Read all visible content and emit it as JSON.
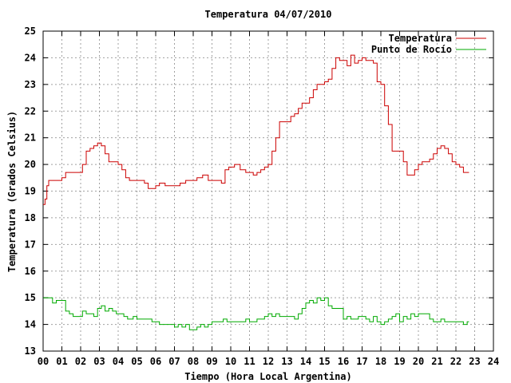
{
  "chart_data": {
    "type": "line",
    "title": "Temperatura 04/07/2010",
    "xlabel": "Tiempo (Hora Local Argentina)",
    "ylabel": "Temperatura (Grados Celsius)",
    "xlim": [
      0,
      24
    ],
    "ylim": [
      13,
      25
    ],
    "xticks": [
      "00",
      "01",
      "02",
      "03",
      "04",
      "05",
      "06",
      "07",
      "08",
      "09",
      "10",
      "11",
      "12",
      "13",
      "14",
      "15",
      "16",
      "17",
      "18",
      "19",
      "20",
      "21",
      "22",
      "23",
      "24"
    ],
    "yticks": [
      "13",
      "14",
      "15",
      "16",
      "17",
      "18",
      "19",
      "20",
      "21",
      "22",
      "23",
      "24",
      "25"
    ],
    "grid": true,
    "legend": "top-right",
    "series": [
      {
        "name": "Temperatura",
        "color": "#cc0000",
        "x": [
          0.0,
          0.1,
          0.2,
          0.3,
          0.5,
          0.8,
          1.0,
          1.2,
          1.5,
          1.9,
          2.1,
          2.3,
          2.5,
          2.7,
          2.9,
          3.1,
          3.3,
          3.5,
          3.7,
          4.0,
          4.2,
          4.4,
          4.6,
          4.8,
          5.0,
          5.2,
          5.4,
          5.6,
          5.8,
          6.0,
          6.2,
          6.5,
          6.8,
          7.0,
          7.3,
          7.6,
          7.9,
          8.2,
          8.5,
          8.8,
          9.0,
          9.3,
          9.5,
          9.7,
          9.9,
          10.0,
          10.2,
          10.5,
          10.8,
          11.0,
          11.2,
          11.4,
          11.6,
          11.8,
          12.0,
          12.2,
          12.4,
          12.6,
          12.8,
          13.0,
          13.2,
          13.4,
          13.6,
          13.8,
          14.0,
          14.2,
          14.4,
          14.6,
          14.8,
          15.0,
          15.2,
          15.4,
          15.6,
          15.8,
          16.0,
          16.2,
          16.4,
          16.6,
          16.8,
          17.0,
          17.2,
          17.4,
          17.6,
          17.8,
          18.0,
          18.2,
          18.4,
          18.6,
          18.8,
          19.0,
          19.2,
          19.4,
          19.6,
          19.8,
          20.0,
          20.2,
          20.4,
          20.6,
          20.8,
          21.0,
          21.2,
          21.4,
          21.6,
          21.8,
          22.0,
          22.2,
          22.4,
          22.6
        ],
        "y": [
          18.5,
          18.7,
          19.2,
          19.4,
          19.4,
          19.4,
          19.5,
          19.7,
          19.7,
          19.7,
          20.0,
          20.5,
          20.6,
          20.7,
          20.8,
          20.7,
          20.4,
          20.1,
          20.1,
          20.0,
          19.8,
          19.5,
          19.4,
          19.4,
          19.4,
          19.4,
          19.3,
          19.1,
          19.1,
          19.2,
          19.3,
          19.2,
          19.2,
          19.2,
          19.3,
          19.4,
          19.4,
          19.5,
          19.6,
          19.4,
          19.4,
          19.4,
          19.3,
          19.8,
          19.9,
          19.9,
          20.0,
          19.8,
          19.7,
          19.7,
          19.6,
          19.7,
          19.8,
          19.9,
          20.0,
          20.5,
          21.0,
          21.6,
          21.6,
          21.6,
          21.8,
          21.9,
          22.1,
          22.3,
          22.3,
          22.5,
          22.8,
          23.0,
          23.0,
          23.1,
          23.2,
          23.6,
          24.0,
          23.9,
          23.9,
          23.7,
          24.1,
          23.8,
          23.9,
          24.0,
          23.9,
          23.9,
          23.8,
          23.1,
          23.0,
          22.2,
          21.5,
          20.5,
          20.5,
          20.5,
          20.1,
          19.6,
          19.6,
          19.8,
          20.0,
          20.1,
          20.1,
          20.2,
          20.4,
          20.6,
          20.7,
          20.6,
          20.4,
          20.1,
          20.0,
          19.9,
          19.7,
          19.7
        ],
        "last_x": 22.7,
        "last_y": 19.7
      },
      {
        "name": "Punto de Rocío",
        "color": "#00aa00",
        "x": [
          0.0,
          0.2,
          0.4,
          0.5,
          0.7,
          1.0,
          1.2,
          1.4,
          1.6,
          1.9,
          2.1,
          2.3,
          2.5,
          2.7,
          2.9,
          3.1,
          3.3,
          3.5,
          3.7,
          3.9,
          4.1,
          4.3,
          4.5,
          4.8,
          5.0,
          5.2,
          5.4,
          5.6,
          5.8,
          6.0,
          6.2,
          6.4,
          6.7,
          7.0,
          7.2,
          7.4,
          7.6,
          7.8,
          8.0,
          8.2,
          8.4,
          8.6,
          8.8,
          9.0,
          9.2,
          9.4,
          9.6,
          9.8,
          10.0,
          10.2,
          10.4,
          10.6,
          10.8,
          11.0,
          11.2,
          11.4,
          11.6,
          11.8,
          12.0,
          12.2,
          12.4,
          12.6,
          12.8,
          13.0,
          13.2,
          13.4,
          13.6,
          13.8,
          14.0,
          14.2,
          14.4,
          14.6,
          14.8,
          15.0,
          15.2,
          15.4,
          15.6,
          15.8,
          16.0,
          16.2,
          16.4,
          16.6,
          16.8,
          17.0,
          17.2,
          17.4,
          17.6,
          17.8,
          18.0,
          18.2,
          18.4,
          18.6,
          18.8,
          19.0,
          19.2,
          19.4,
          19.6,
          19.8,
          20.0,
          20.2,
          20.4,
          20.6,
          20.8,
          21.0,
          21.2,
          21.4,
          21.6,
          21.8,
          22.0,
          22.2,
          22.4,
          22.6
        ],
        "y": [
          15.0,
          15.0,
          15.0,
          14.8,
          14.9,
          14.9,
          14.5,
          14.4,
          14.3,
          14.3,
          14.5,
          14.4,
          14.4,
          14.3,
          14.6,
          14.7,
          14.5,
          14.6,
          14.5,
          14.4,
          14.4,
          14.3,
          14.2,
          14.3,
          14.2,
          14.2,
          14.2,
          14.2,
          14.1,
          14.1,
          14.0,
          14.0,
          14.0,
          13.9,
          14.0,
          13.9,
          14.0,
          13.8,
          13.8,
          13.9,
          14.0,
          13.9,
          14.0,
          14.1,
          14.1,
          14.1,
          14.2,
          14.1,
          14.1,
          14.1,
          14.1,
          14.1,
          14.2,
          14.1,
          14.1,
          14.2,
          14.2,
          14.3,
          14.4,
          14.3,
          14.4,
          14.3,
          14.3,
          14.3,
          14.3,
          14.2,
          14.4,
          14.6,
          14.8,
          14.9,
          14.8,
          15.0,
          14.9,
          15.0,
          14.7,
          14.6,
          14.6,
          14.6,
          14.2,
          14.3,
          14.2,
          14.2,
          14.3,
          14.3,
          14.2,
          14.1,
          14.3,
          14.1,
          14.0,
          14.1,
          14.2,
          14.3,
          14.4,
          14.1,
          14.3,
          14.2,
          14.4,
          14.3,
          14.4,
          14.4,
          14.4,
          14.2,
          14.1,
          14.1,
          14.2,
          14.1,
          14.1,
          14.1,
          14.1,
          14.1,
          14.0,
          14.1
        ],
        "last_x": 22.7,
        "last_y": 14.1
      }
    ]
  }
}
